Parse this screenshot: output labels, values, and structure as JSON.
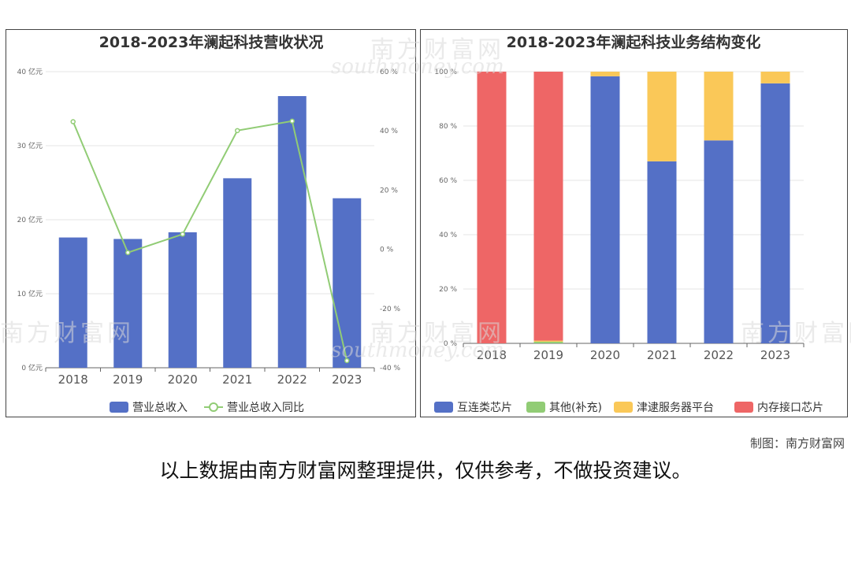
{
  "chart_data": [
    {
      "type": "bar+line",
      "title": "2018-2023年澜起科技营收状况",
      "categories": [
        "2018",
        "2019",
        "2020",
        "2021",
        "2022",
        "2023"
      ],
      "series": [
        {
          "name": "营业总收入",
          "type": "bar",
          "axis": "left",
          "color": "#5470c6",
          "values": [
            17.6,
            17.4,
            18.3,
            25.6,
            36.7,
            22.9
          ]
        },
        {
          "name": "营业总收入同比",
          "type": "line",
          "axis": "right",
          "color": "#91cc75",
          "values": [
            43.1,
            -1.1,
            5.1,
            40.1,
            43.3,
            -37.6
          ]
        }
      ],
      "y_left": {
        "ticks": [
          "0 亿元",
          "10 亿元",
          "20 亿元",
          "30 亿元",
          "40 亿元"
        ],
        "min": 0,
        "max": 40
      },
      "y_right": {
        "ticks": [
          "-40 %",
          "-20 %",
          "0 %",
          "20 %",
          "40 %",
          "60 %"
        ],
        "min": -40,
        "max": 60
      },
      "legend_position": "bottom",
      "grid": true
    },
    {
      "type": "stacked-bar",
      "title": "2018-2023年澜起科技业务结构变化",
      "categories": [
        "2018",
        "2019",
        "2020",
        "2021",
        "2022",
        "2023"
      ],
      "series": [
        {
          "name": "互连类芯片",
          "color": "#5470c6",
          "values": [
            0,
            0,
            98.3,
            67,
            74.7,
            95.7
          ]
        },
        {
          "name": "其他(补充)",
          "color": "#91cc75",
          "values": [
            0,
            0.6,
            0,
            0,
            0,
            0
          ]
        },
        {
          "name": "津逮服务器平台",
          "color": "#fac858",
          "values": [
            0,
            0.4,
            1.7,
            33,
            25.3,
            4.3
          ]
        },
        {
          "name": "内存接口芯片",
          "color": "#ee6666",
          "values": [
            100,
            99,
            0,
            0,
            0,
            0
          ]
        }
      ],
      "y_axis": {
        "ticks": [
          "0 %",
          "20 %",
          "40 %",
          "60 %",
          "80 %",
          "100 %"
        ],
        "min": 0,
        "max": 100
      },
      "legend_position": "bottom",
      "grid": true
    }
  ],
  "watermark": {
    "cn": "南方财富网",
    "en": "southmoney.com"
  },
  "credit": "制图：南方财富网",
  "footer_note": "以上数据由南方财富网整理提供，仅供参考，不做投资建议。"
}
